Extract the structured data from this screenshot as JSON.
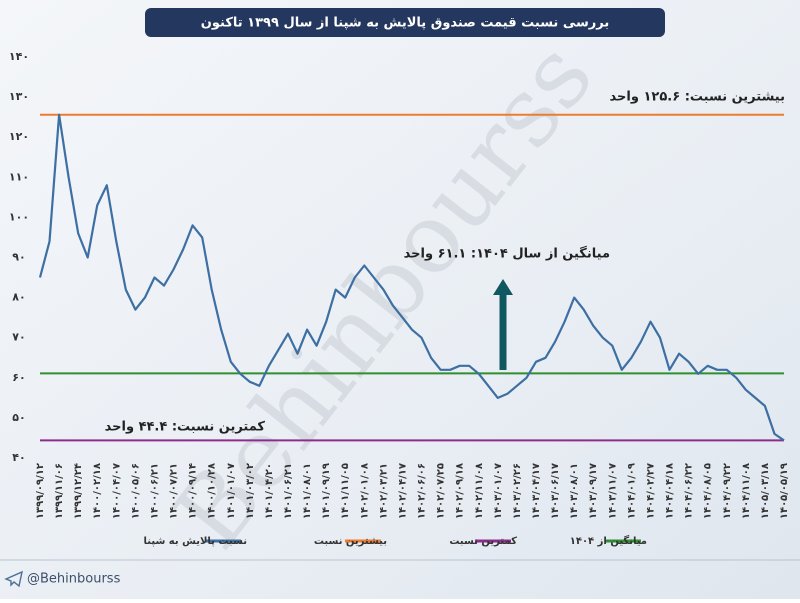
{
  "chart_data": {
    "type": "line",
    "title": "بررسی نسبت قیمت صندوق پالایش به شپنا از سال ۱۳۹۹ تاکنون",
    "watermark": "Behinbourss",
    "footer": "@Behinbourss",
    "categories": [
      "۱۳۹۹/۰۹/۱۲",
      null,
      "۱۳۹۹/۱۱/۰۶",
      null,
      "۱۳۹۹/۱۲/۲۴",
      null,
      "۱۴۰۰/۰۲/۱۸",
      null,
      "۱۴۰۰/۰۴/۰۷",
      null,
      "۱۴۰۰/۰۵/۰۶",
      null,
      "۱۴۰۰/۰۶/۲۱",
      null,
      "۱۴۰۰/۰۷/۲۱",
      null,
      "۱۴۰۰/۰۹/۱۴",
      null,
      "۱۴۰۰/۱۰/۲۸",
      null,
      "۱۴۰۱/۰۱/۰۷",
      null,
      "۱۴۰۱/۰۳/۰۲",
      null,
      "۱۴۰۱/۰۴/۲۰",
      null,
      "۱۴۰۱/۰۶/۲۱",
      null,
      "۱۴۰۱/۰۸/۰۱",
      null,
      "۱۴۰۱/۰۹/۱۹",
      null,
      "۱۴۰۱/۱۱/۰۵",
      null,
      "۱۴۰۲/۰۱/۰۸",
      null,
      "۱۴۰۲/۰۳/۲۱",
      null,
      "۱۴۰۲/۰۴/۱۷",
      null,
      "۱۴۰۲/۰۶/۰۶",
      null,
      "۱۴۰۲/۰۷/۲۵",
      null,
      "۱۴۰۲/۰۹/۱۸",
      null,
      "۱۴۰۲/۱۱/۰۸",
      null,
      "۱۴۰۳/۰۱/۰۷",
      null,
      "۱۴۰۳/۰۲/۲۶",
      null,
      "۱۴۰۳/۰۴/۱۷",
      null,
      "۱۴۰۳/۰۶/۱۷",
      null,
      "۱۴۰۳/۰۸/۰۱",
      null,
      "۱۴۰۳/۰۹/۱۷",
      null,
      "۱۴۰۳/۱۱/۰۷",
      null,
      "۱۴۰۴/۰۱/۰۹",
      null,
      "۱۴۰۴/۰۲/۲۷",
      null,
      "۱۴۰۴/۰۴/۱۸",
      null,
      "۱۴۰۴/۰۶/۲۲",
      null,
      "۱۴۰۴/۰۸/۰۵",
      null,
      "۱۴۰۴/۰۹/۲۲",
      null,
      "۱۴۰۴/۱۱/۰۸",
      null,
      "۱۴۰۵/۰۳/۱۸",
      null,
      "۱۴۰۵/۰۵/۱۹"
    ],
    "series": [
      {
        "name": "نسبت پالایش به شپنا",
        "color": "#3d6fa3",
        "values": [
          85,
          94,
          125.6,
          110,
          96,
          90,
          103,
          108,
          94,
          82,
          77,
          80,
          85,
          83,
          87,
          92,
          98,
          95,
          82,
          72,
          64,
          61,
          59,
          58,
          63,
          67,
          71,
          66,
          72,
          68,
          74,
          82,
          80,
          85,
          88,
          85,
          82,
          78,
          75,
          72,
          70,
          65,
          62,
          62,
          63,
          63,
          61,
          58,
          55,
          56,
          58,
          60,
          64,
          65,
          69,
          74,
          80,
          77,
          73,
          70,
          68,
          62,
          65,
          69,
          74,
          70,
          62,
          66,
          64,
          61,
          63,
          62,
          62,
          60,
          57,
          55,
          53,
          46,
          44.4
        ]
      }
    ],
    "reference_lines": [
      {
        "name": "بیشترین نسبت",
        "value": 125.6,
        "color": "#ec7c30",
        "label": "بیشترین نسبت: ۱۲۵.۶ واحد"
      },
      {
        "name": "کمترین نسبت",
        "value": 44.4,
        "color": "#8e2c8e",
        "label": "کمترین نسبت: ۴۴.۴ واحد"
      },
      {
        "name": "میانگین از ۱۴۰۴",
        "value": 61.1,
        "color": "#2f8f2f",
        "label": "میانگین از سال ۱۴۰۴: ۶۱.۱ واحد"
      }
    ],
    "ylim": [
      40,
      140
    ],
    "yticks": [
      {
        "value": 40,
        "label": "۴۰"
      },
      {
        "value": 50,
        "label": "۵۰"
      },
      {
        "value": 60,
        "label": "۶۰"
      },
      {
        "value": 70,
        "label": "۷۰"
      },
      {
        "value": 80,
        "label": "۸۰"
      },
      {
        "value": 90,
        "label": "۹۰"
      },
      {
        "value": 100,
        "label": "۱۰۰"
      },
      {
        "value": 110,
        "label": "۱۱۰"
      },
      {
        "value": 120,
        "label": "۱۲۰"
      },
      {
        "value": 130,
        "label": "۱۳۰"
      },
      {
        "value": 140,
        "label": "۱۴۰"
      }
    ],
    "grid": false
  }
}
